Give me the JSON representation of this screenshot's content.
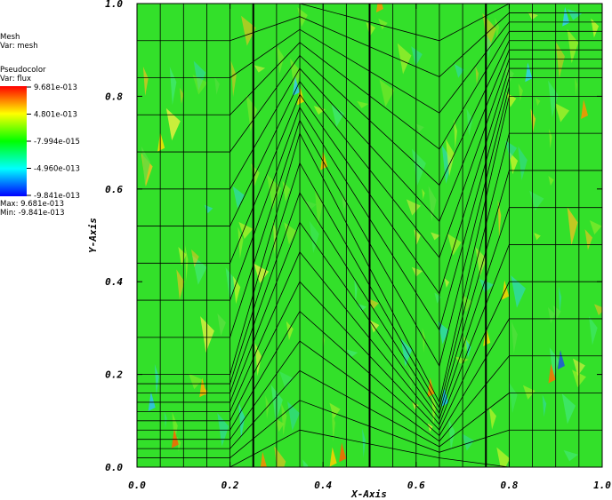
{
  "legend": {
    "mesh_title": "Mesh",
    "mesh_var": "Var: mesh",
    "pc_title": "Pseudocolor",
    "pc_var": "Var: flux",
    "color_labels": [
      "9.681e-013",
      "4.801e-013",
      "-7.994e-015",
      "-4.960e-013",
      "-9.841e-013"
    ],
    "max_label": "Max:  9.681e-013",
    "min_label": "Min: -9.841e-013",
    "colors": [
      "#ff0000",
      "#ffff00",
      "#00ff00",
      "#00ffff",
      "#0000ff"
    ]
  },
  "chart_data": {
    "type": "heatmap",
    "title": "",
    "xlabel": "X-Axis",
    "ylabel": "Y-Axis",
    "xlim": [
      0.0,
      1.0
    ],
    "ylim": [
      0.0,
      1.0
    ],
    "x_ticks": [
      "0.0",
      "0.2",
      "0.4",
      "0.6",
      "0.8",
      "1.0"
    ],
    "y_ticks": [
      "0.0",
      "0.2",
      "0.4",
      "0.6",
      "0.8",
      "1.0"
    ],
    "variable": "flux",
    "value_range": [
      -9.841e-13,
      9.681e-13
    ],
    "field_color": "#33e02a",
    "mesh_x_lines": [
      0.0,
      0.05,
      0.1,
      0.15,
      0.2,
      0.25,
      0.3,
      0.35,
      0.4,
      0.45,
      0.5,
      0.55,
      0.6,
      0.65,
      0.7,
      0.75,
      0.8,
      0.85,
      0.9,
      0.95,
      1.0
    ],
    "bold_x_lines": [
      0.25,
      0.5,
      0.75
    ],
    "mesh_regions": [
      {
        "name": "left",
        "x_range": [
          0.0,
          0.2
        ],
        "rows": [
          0.0,
          0.02,
          0.04,
          0.06,
          0.08,
          0.1,
          0.12,
          0.14,
          0.16,
          0.18,
          0.2,
          0.28,
          0.36,
          0.44,
          0.52,
          0.6,
          0.68,
          0.76,
          0.84,
          0.92,
          1.0
        ]
      },
      {
        "name": "middle-zigzag",
        "x_range": [
          0.2,
          0.8
        ],
        "peak_x": 0.35,
        "valley_x": 0.65
      },
      {
        "name": "right",
        "x_range": [
          0.8,
          1.0
        ],
        "rows": [
          0.0,
          0.08,
          0.16,
          0.24,
          0.32,
          0.4,
          0.48,
          0.56,
          0.64,
          0.72,
          0.8,
          0.84,
          0.86,
          0.88,
          0.9,
          0.92,
          0.94,
          0.96,
          0.98,
          1.0
        ]
      }
    ]
  }
}
